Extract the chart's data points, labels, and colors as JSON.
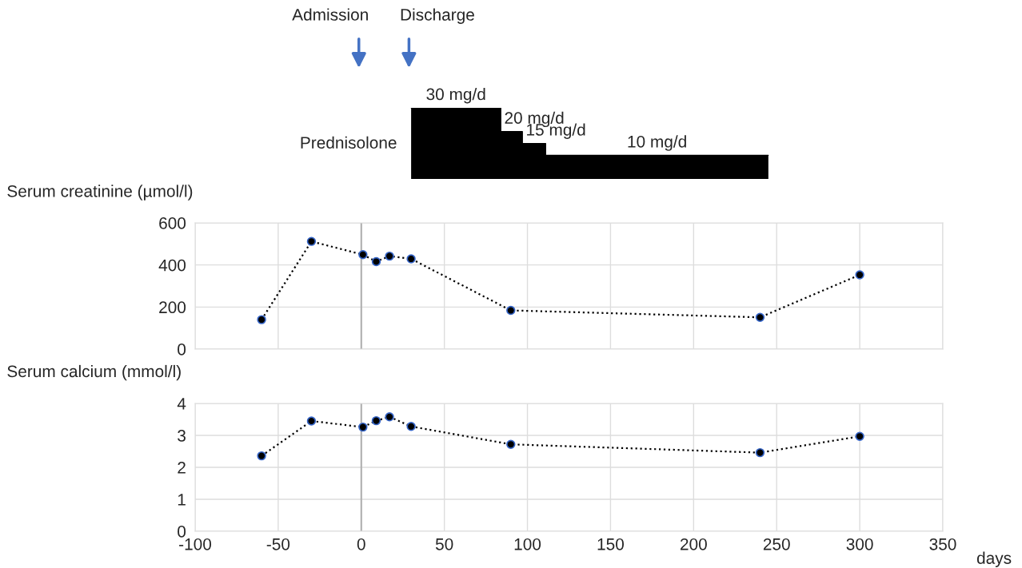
{
  "chart_data": [
    {
      "type": "area",
      "x": [
        30,
        84,
        84,
        97,
        97,
        111,
        111,
        178,
        245
      ],
      "values": [
        30,
        30,
        20,
        20,
        15,
        15,
        10,
        10,
        10
      ],
      "color": "#000000",
      "value_labels": [
        "30 mg/d",
        null,
        "20 mg/d",
        null,
        "15 mg/d",
        null,
        null,
        "10 mg/d",
        null
      ],
      "xlim": [
        -100,
        350
      ],
      "tick_labels": false,
      "annotations": [
        "Prednisolone",
        "Admission",
        "Discharge"
      ]
    },
    {
      "type": "line",
      "ylabel": "Serum creatinine (µmol/l)",
      "x": [
        -60,
        -30,
        1,
        9,
        17,
        30,
        90,
        240,
        300
      ],
      "series": [
        {
          "color": "#000000",
          "values": [
            140,
            512,
            449,
            416,
            442,
            429,
            184,
            151,
            353
          ]
        }
      ],
      "xlim": [
        -100,
        350
      ],
      "xticks": [
        -100,
        -50,
        0,
        50,
        100,
        150,
        200,
        250,
        300,
        350
      ],
      "ylim": [
        0,
        600
      ],
      "yticks": [
        0,
        200,
        400,
        600
      ],
      "tick_labels": "y",
      "grid": true,
      "marker": "circle",
      "line_style": "dotted",
      "ref_lines": [
        {
          "axis": "x",
          "value": 0,
          "color": "#b0b0b0"
        }
      ]
    },
    {
      "type": "line",
      "ylabel": "Serum calcium (mmol/l)",
      "xlabel": "days",
      "x": [
        -60,
        -30,
        1,
        9,
        17,
        30,
        90,
        240,
        300
      ],
      "series": [
        {
          "color": "#000000",
          "values": [
            2.36,
            3.45,
            3.26,
            3.46,
            3.58,
            3.28,
            2.72,
            2.46,
            2.97
          ]
        }
      ],
      "xlim": [
        -100,
        350
      ],
      "xticks": [
        -100,
        -50,
        0,
        50,
        100,
        150,
        200,
        250,
        300,
        350
      ],
      "ylim": [
        0,
        4
      ],
      "yticks": [
        0,
        1,
        2,
        3,
        4
      ],
      "grid": true,
      "marker": "circle",
      "line_style": "dotted",
      "ref_lines": [
        {
          "axis": "x",
          "value": 0,
          "color": "#b0b0b0"
        }
      ]
    }
  ]
}
